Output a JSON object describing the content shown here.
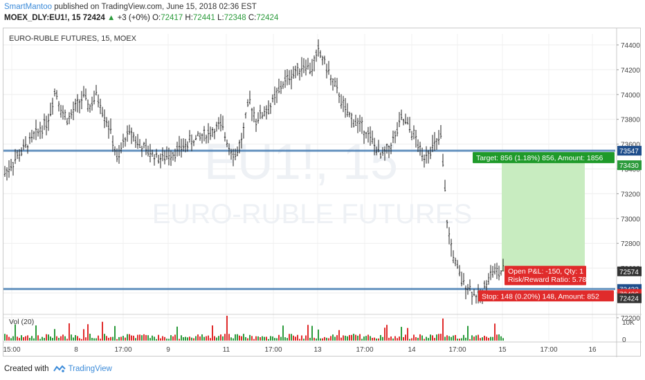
{
  "header": {
    "author": "SmartMantoo",
    "published_text": "published on TradingView.com, June 15, 2018 02:36 EST",
    "symbol": "MOEX_DLY:EU1!, 15",
    "last": "72424",
    "change": "+3 (+0%)",
    "o_label": "O:",
    "o_value": "72417",
    "h_label": "H:",
    "h_value": "72441",
    "l_label": "L:",
    "l_value": "72348",
    "c_label": "C:",
    "c_value": "72424"
  },
  "chart": {
    "title": "EURO-RUBLE FUTURES, 15, MOEX",
    "watermark_symbol": "EU1!, 15",
    "watermark_name": "EURO-RUBLE FUTURES",
    "volume_label": "Vol (20)",
    "price_ticks": [
      "74400",
      "74200",
      "74000",
      "73800",
      "73600",
      "73400",
      "73200",
      "73000",
      "72800",
      "72600",
      "72400",
      "72200"
    ],
    "volume_ticks": [
      "10K",
      "0"
    ],
    "time_ticks": [
      "15:00",
      "8",
      "17:00",
      "9",
      "11",
      "17:00",
      "13",
      "17:00",
      "14",
      "17:00",
      "15",
      "17:00",
      "16"
    ],
    "price_badges": [
      {
        "text": "73547",
        "color": "#1f4e8c"
      },
      {
        "text": "73430",
        "color": "#2a9a3a"
      },
      {
        "text": "72574",
        "color": "#333333"
      },
      {
        "text": "72432",
        "color": "#1f4e8c"
      },
      {
        "text": "72426",
        "color": "#e02b2b"
      },
      {
        "text": "72424",
        "color": "#333333"
      }
    ],
    "target_label": "Target: 856 (1.18%) 856, Amount: 1856",
    "open_pnl_label": "Open P&L: -150, Qty: 1",
    "risk_reward_label": "Risk/Reward Ratio: 5.78",
    "stop_label": "Stop: 148 (0.20%) 148, Amount: 852",
    "colors": {
      "up": "#2a9a3a",
      "down": "#e02b2b",
      "bar": "#222222",
      "line": "#4a7fb5",
      "target_fill": "#c8ecc0",
      "target_label": "#1f9a2a",
      "stop_label": "#e02b2b"
    }
  },
  "footer": {
    "created_with": "Created with",
    "brand": "TradingView"
  }
}
